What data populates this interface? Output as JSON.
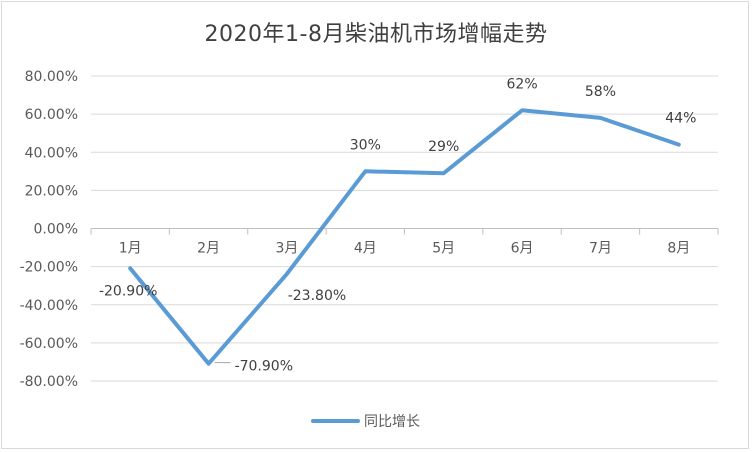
{
  "chart_data": {
    "type": "line",
    "title": "2020年1-8月柴油机市场增幅走势",
    "categories": [
      "1月",
      "2月",
      "3月",
      "4月",
      "5月",
      "6月",
      "7月",
      "8月"
    ],
    "series": [
      {
        "name": "同比增长",
        "values": [
          -20.9,
          -70.9,
          -23.8,
          30,
          29,
          62,
          58,
          44
        ],
        "data_labels": [
          "-20.90%",
          "-70.90%",
          "-23.80%",
          "30%",
          "29%",
          "62%",
          "58%",
          "44%"
        ],
        "color": "#5b9bd5"
      }
    ],
    "ylim": [
      -80,
      80
    ],
    "yticks": [
      80,
      60,
      40,
      20,
      0,
      -20,
      -40,
      -60,
      -80
    ],
    "ytick_labels": [
      "80.00%",
      "60.00%",
      "40.00%",
      "20.00%",
      "0.00%",
      "-20.00%",
      "-40.00%",
      "-60.00%",
      "-80.00%"
    ],
    "xlabel": "",
    "ylabel": "",
    "grid": true,
    "legend": "bottom-center"
  }
}
